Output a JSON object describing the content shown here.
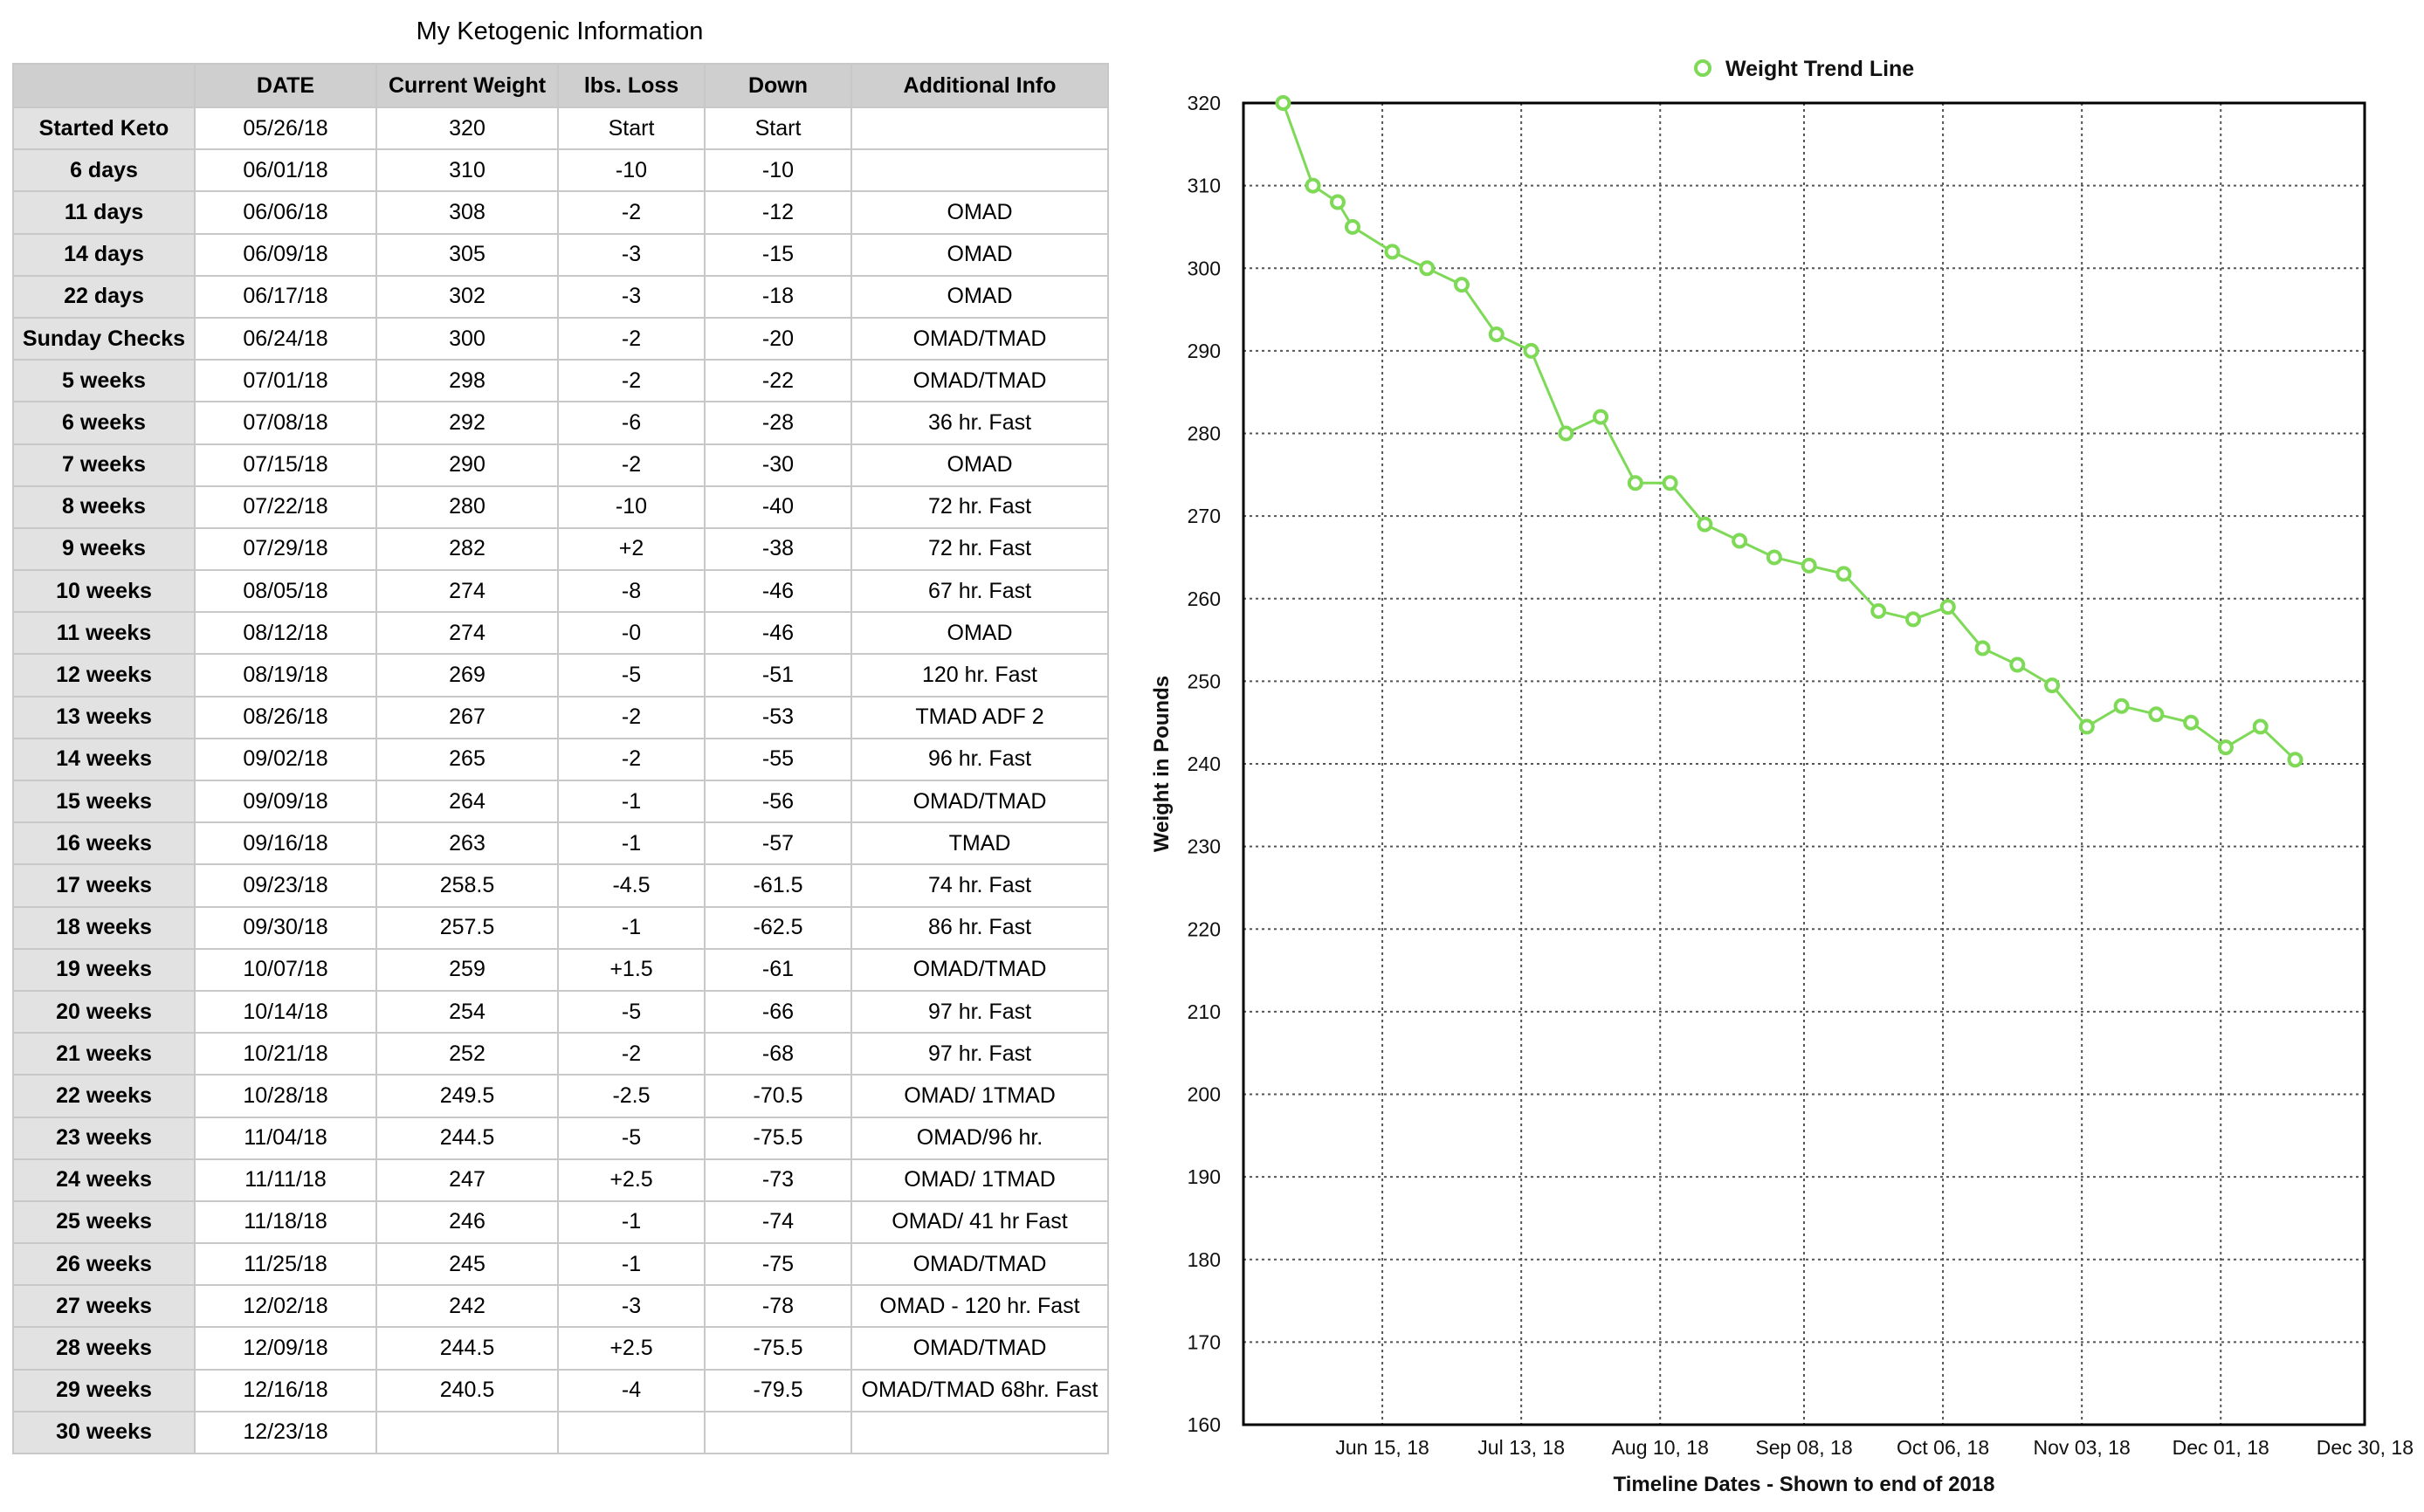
{
  "table": {
    "title": "My Ketogenic Information",
    "headers": [
      "",
      "DATE",
      "Current Weight",
      "lbs. Loss",
      "Down",
      "Additional Info"
    ],
    "rows": [
      [
        "Started Keto",
        "05/26/18",
        "320",
        "Start",
        "Start",
        ""
      ],
      [
        "6 days",
        "06/01/18",
        "310",
        "-10",
        "-10",
        ""
      ],
      [
        "11 days",
        "06/06/18",
        "308",
        "-2",
        "-12",
        "OMAD"
      ],
      [
        "14 days",
        "06/09/18",
        "305",
        "-3",
        "-15",
        "OMAD"
      ],
      [
        "22 days",
        "06/17/18",
        "302",
        "-3",
        "-18",
        "OMAD"
      ],
      [
        "Sunday Checks",
        "06/24/18",
        "300",
        "-2",
        "-20",
        "OMAD/TMAD"
      ],
      [
        "5 weeks",
        "07/01/18",
        "298",
        "-2",
        "-22",
        "OMAD/TMAD"
      ],
      [
        "6 weeks",
        "07/08/18",
        "292",
        "-6",
        "-28",
        "36 hr. Fast"
      ],
      [
        "7 weeks",
        "07/15/18",
        "290",
        "-2",
        "-30",
        "OMAD"
      ],
      [
        "8 weeks",
        "07/22/18",
        "280",
        "-10",
        "-40",
        "72 hr. Fast"
      ],
      [
        "9 weeks",
        "07/29/18",
        "282",
        "+2",
        "-38",
        "72 hr. Fast"
      ],
      [
        "10 weeks",
        "08/05/18",
        "274",
        "-8",
        "-46",
        "67 hr. Fast"
      ],
      [
        "11 weeks",
        "08/12/18",
        "274",
        "-0",
        "-46",
        "OMAD"
      ],
      [
        "12 weeks",
        "08/19/18",
        "269",
        "-5",
        "-51",
        "120 hr. Fast"
      ],
      [
        "13 weeks",
        "08/26/18",
        "267",
        "-2",
        "-53",
        "TMAD ADF 2"
      ],
      [
        "14 weeks",
        "09/02/18",
        "265",
        "-2",
        "-55",
        "96 hr. Fast"
      ],
      [
        "15 weeks",
        "09/09/18",
        "264",
        "-1",
        "-56",
        "OMAD/TMAD"
      ],
      [
        "16 weeks",
        "09/16/18",
        "263",
        "-1",
        "-57",
        "TMAD"
      ],
      [
        "17 weeks",
        "09/23/18",
        "258.5",
        "-4.5",
        "-61.5",
        "74 hr. Fast"
      ],
      [
        "18 weeks",
        "09/30/18",
        "257.5",
        "-1",
        "-62.5",
        "86 hr. Fast"
      ],
      [
        "19 weeks",
        "10/07/18",
        "259",
        "+1.5",
        "-61",
        "OMAD/TMAD"
      ],
      [
        "20 weeks",
        "10/14/18",
        "254",
        "-5",
        "-66",
        "97 hr. Fast"
      ],
      [
        "21 weeks",
        "10/21/18",
        "252",
        "-2",
        "-68",
        "97 hr. Fast"
      ],
      [
        "22 weeks",
        "10/28/18",
        "249.5",
        "-2.5",
        "-70.5",
        "OMAD/ 1TMAD"
      ],
      [
        "23 weeks",
        "11/04/18",
        "244.5",
        "-5",
        "-75.5",
        "OMAD/96 hr."
      ],
      [
        "24 weeks",
        "11/11/18",
        "247",
        "+2.5",
        "-73",
        "OMAD/ 1TMAD"
      ],
      [
        "25 weeks",
        "11/18/18",
        "246",
        "-1",
        "-74",
        "OMAD/ 41 hr Fast"
      ],
      [
        "26 weeks",
        "11/25/18",
        "245",
        "-1",
        "-75",
        "OMAD/TMAD"
      ],
      [
        "27 weeks",
        "12/02/18",
        "242",
        "-3",
        "-78",
        "OMAD - 120 hr. Fast"
      ],
      [
        "28 weeks",
        "12/09/18",
        "244.5",
        "+2.5",
        "-75.5",
        "OMAD/TMAD"
      ],
      [
        "29 weeks",
        "12/16/18",
        "240.5",
        "-4",
        "-79.5",
        "OMAD/TMAD 68hr. Fast"
      ],
      [
        "30 weeks",
        "12/23/18",
        "",
        "",
        "",
        ""
      ]
    ]
  },
  "chart_data": {
    "type": "line",
    "title": "",
    "legend": {
      "entries": [
        "Weight Trend Line"
      ],
      "position": "top-center"
    },
    "xlabel": "Timeline Dates - Shown to end of 2018",
    "ylabel": "Weight in Pounds",
    "ylim": [
      160,
      320
    ],
    "yticks": [
      160,
      170,
      180,
      190,
      200,
      210,
      220,
      230,
      240,
      250,
      260,
      270,
      280,
      290,
      300,
      310,
      320
    ],
    "xlim": [
      "2018-05-18",
      "2018-12-30"
    ],
    "xticks": [
      {
        "date": "2018-06-15",
        "label": "Jun 15, 18"
      },
      {
        "date": "2018-07-13",
        "label": "Jul 13, 18"
      },
      {
        "date": "2018-08-10",
        "label": "Aug 10, 18"
      },
      {
        "date": "2018-09-08",
        "label": "Sep 08, 18"
      },
      {
        "date": "2018-10-06",
        "label": "Oct 06, 18"
      },
      {
        "date": "2018-11-03",
        "label": "Nov 03, 18"
      },
      {
        "date": "2018-12-01",
        "label": "Dec 01, 18"
      },
      {
        "date": "2018-12-30",
        "label": "Dec 30, 18"
      }
    ],
    "grid": true,
    "colors": {
      "series": "#7ed957",
      "frame": "#000000",
      "grid": "#555555"
    },
    "series": [
      {
        "name": "Weight Trend Line",
        "x": [
          "2018-05-26",
          "2018-06-01",
          "2018-06-06",
          "2018-06-09",
          "2018-06-17",
          "2018-06-24",
          "2018-07-01",
          "2018-07-08",
          "2018-07-15",
          "2018-07-22",
          "2018-07-29",
          "2018-08-05",
          "2018-08-12",
          "2018-08-19",
          "2018-08-26",
          "2018-09-02",
          "2018-09-09",
          "2018-09-16",
          "2018-09-23",
          "2018-09-30",
          "2018-10-07",
          "2018-10-14",
          "2018-10-21",
          "2018-10-28",
          "2018-11-04",
          "2018-11-11",
          "2018-11-18",
          "2018-11-25",
          "2018-12-02",
          "2018-12-09",
          "2018-12-16"
        ],
        "y": [
          320,
          310,
          308,
          305,
          302,
          300,
          298,
          292,
          290,
          280,
          282,
          274,
          274,
          269,
          267,
          265,
          264,
          263,
          258.5,
          257.5,
          259,
          254,
          252,
          249.5,
          244.5,
          247,
          246,
          245,
          242,
          244.5,
          240.5
        ]
      }
    ]
  }
}
